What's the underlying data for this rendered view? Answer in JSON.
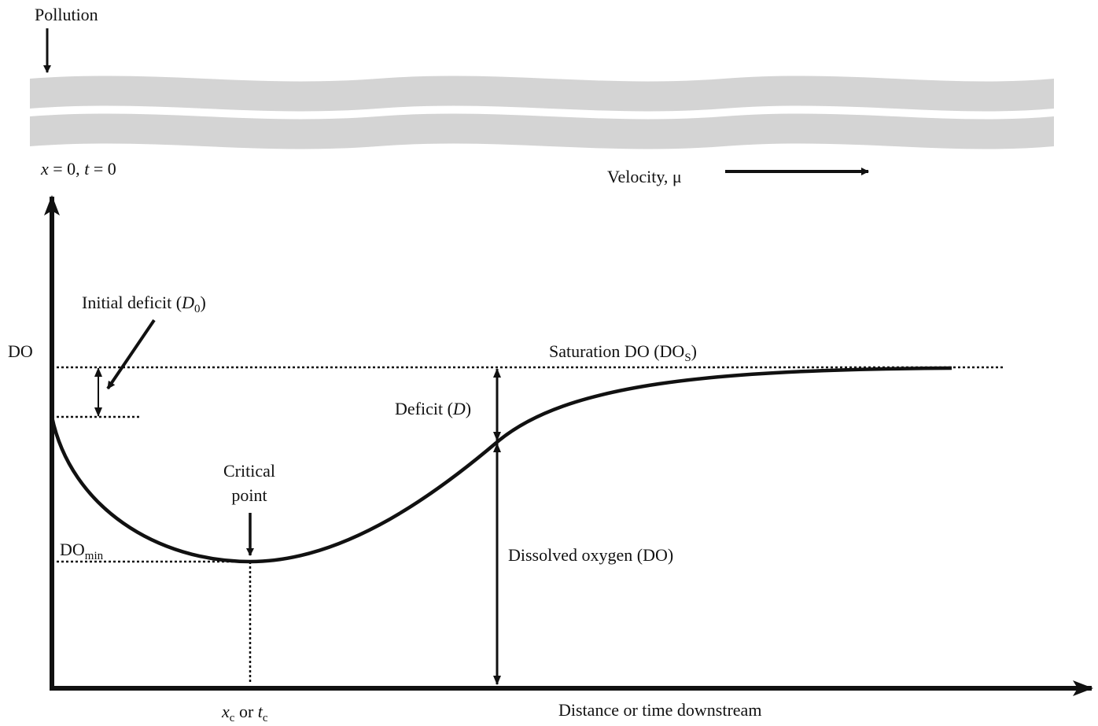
{
  "pollution": "Pollution",
  "origin": [
    "x",
    " = 0, ",
    "t",
    " = 0"
  ],
  "velocity": "Velocity, μ",
  "y_axis": "DO",
  "x_axis": "Distance or time downstream",
  "initial_deficit": [
    "Initial deficit (",
    "D",
    "0",
    ")"
  ],
  "saturation": [
    "Saturation DO (DO",
    "S",
    ")"
  ],
  "deficit": [
    "Deficit (",
    "D",
    ")"
  ],
  "critical_point": [
    "Critical",
    "point"
  ],
  "do_min": [
    "DO",
    "min"
  ],
  "dissolved_oxygen": "Dissolved oxygen (DO)",
  "critical_x": [
    "x",
    "c",
    " or ",
    "t",
    "c"
  ]
}
